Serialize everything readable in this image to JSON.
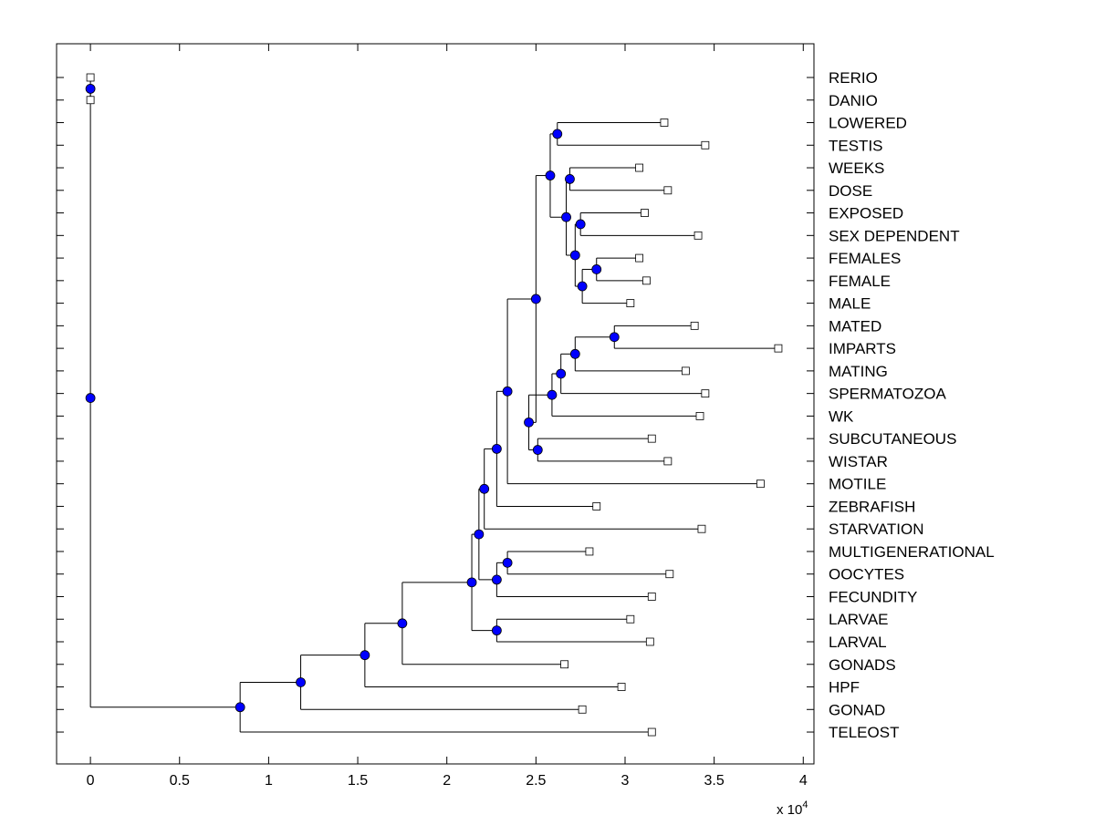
{
  "chart_data": {
    "type": "dendrogram",
    "orientation": "horizontal",
    "xlim": [
      -0.19,
      4.06
    ],
    "xticks": [
      0,
      0.5,
      1,
      1.5,
      2,
      2.5,
      3,
      3.5,
      4
    ],
    "x_tick_labels": [
      "0",
      "0.5",
      "1",
      "1.5",
      "2",
      "2.5",
      "3",
      "3.5",
      "4"
    ],
    "x_multiplier_label": {
      "prefix": "x 10",
      "exponent": "4"
    },
    "leaves": [
      "RERIO",
      "DANIO",
      "LOWERED",
      "TESTIS",
      "WEEKS",
      "DOSE",
      "EXPOSED",
      "SEX DEPENDENT",
      "FEMALES",
      "FEMALE",
      "MALE",
      "MATED",
      "IMPARTS",
      "MATING",
      "SPERMATOZOA",
      "WK",
      "SUBCUTANEOUS",
      "WISTAR",
      "MOTILE",
      "ZEBRAFISH",
      "STARVATION",
      "MULTIGENERATIONAL",
      "OOCYTES",
      "FECUNDITY",
      "LARVAE",
      "LARVAL",
      "GONADS",
      "HPF",
      "GONAD",
      "TELEOST"
    ],
    "leaf_x": [
      0,
      0,
      3.22,
      3.45,
      3.08,
      3.24,
      3.11,
      3.41,
      3.08,
      3.12,
      3.03,
      3.39,
      3.86,
      3.34,
      3.45,
      3.42,
      3.15,
      3.24,
      3.76,
      2.84,
      3.43,
      2.8,
      3.25,
      3.15,
      3.03,
      3.14,
      2.66,
      2.98,
      2.76,
      3.15
    ],
    "nodes": {
      "A": {
        "x": 0,
        "children": [
          "L0",
          "L1"
        ]
      },
      "B": {
        "x": 2.62,
        "children": [
          "L2",
          "L3"
        ]
      },
      "C": {
        "x": 2.69,
        "children": [
          "L4",
          "L5"
        ]
      },
      "D": {
        "x": 2.75,
        "children": [
          "L6",
          "L7"
        ]
      },
      "E": {
        "x": 2.84,
        "children": [
          "L8",
          "L9"
        ]
      },
      "F": {
        "x": 2.76,
        "children": [
          "E",
          "L10"
        ]
      },
      "G": {
        "x": 2.72,
        "children": [
          "D",
          "F"
        ]
      },
      "H": {
        "x": 2.67,
        "children": [
          "C",
          "G"
        ]
      },
      "I": {
        "x": 2.58,
        "children": [
          "B",
          "H"
        ]
      },
      "J": {
        "x": 2.94,
        "children": [
          "L11",
          "L12"
        ]
      },
      "K": {
        "x": 2.72,
        "children": [
          "J",
          "L13"
        ]
      },
      "L": {
        "x": 2.64,
        "children": [
          "K",
          "L14"
        ]
      },
      "M": {
        "x": 2.59,
        "children": [
          "L",
          "L15"
        ]
      },
      "N": {
        "x": 2.51,
        "children": [
          "L16",
          "L17"
        ]
      },
      "O": {
        "x": 2.46,
        "children": [
          "M",
          "N"
        ]
      },
      "P": {
        "x": 2.5,
        "children": [
          "I",
          "O"
        ]
      },
      "Q": {
        "x": 2.34,
        "children": [
          "P",
          "L18"
        ]
      },
      "R": {
        "x": 2.28,
        "children": [
          "Q",
          "L19"
        ]
      },
      "S": {
        "x": 2.21,
        "children": [
          "R",
          "L20"
        ]
      },
      "T": {
        "x": 2.34,
        "children": [
          "L21",
          "L22"
        ]
      },
      "U": {
        "x": 2.28,
        "children": [
          "T",
          "L23"
        ]
      },
      "V": {
        "x": 2.18,
        "children": [
          "S",
          "U"
        ]
      },
      "W": {
        "x": 2.28,
        "children": [
          "L24",
          "L25"
        ]
      },
      "X": {
        "x": 2.14,
        "children": [
          "V",
          "W"
        ]
      },
      "Y": {
        "x": 1.75,
        "children": [
          "X",
          "L26"
        ]
      },
      "Z": {
        "x": 1.54,
        "children": [
          "Y",
          "L27"
        ]
      },
      "AA": {
        "x": 1.18,
        "children": [
          "Z",
          "L28"
        ]
      },
      "AB": {
        "x": 0.84,
        "children": [
          "AA",
          "L29"
        ]
      },
      "ROOT": {
        "x": 0,
        "children": [
          "A",
          "AB"
        ]
      }
    },
    "root": "ROOT",
    "colors": {
      "node_fill": "#0000ff",
      "leaf_fill": "#ffffff",
      "line": "#000000"
    },
    "grid": false,
    "legend": "none"
  }
}
